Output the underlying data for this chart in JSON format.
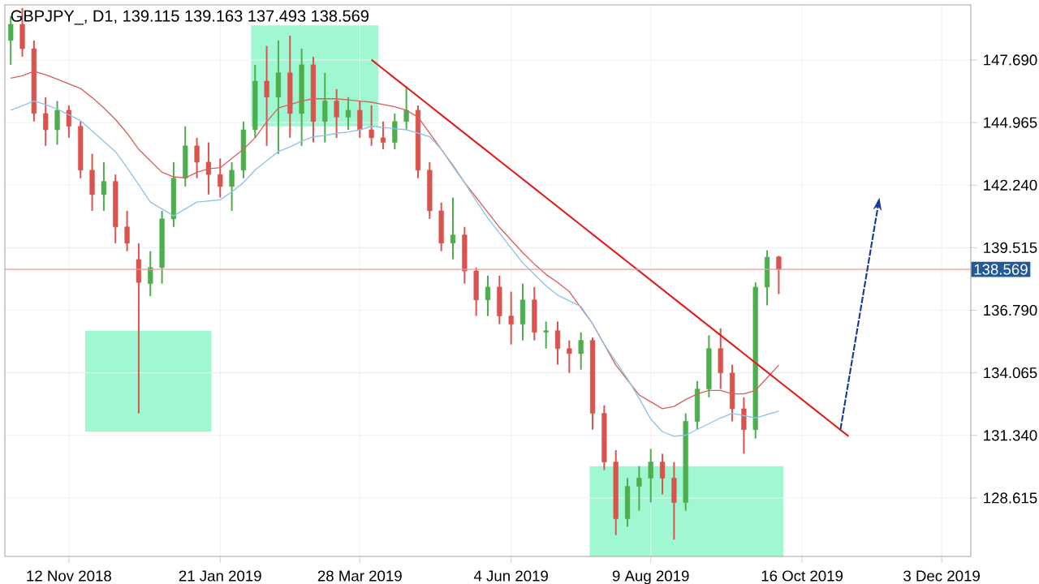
{
  "chart_data": {
    "type": "candlestick",
    "title": "GBPJPY_, D1, 139.115 139.163 137.493 138.569",
    "categories": [
      null,
      null,
      null,
      null,
      null,
      "12 Nov 2018",
      null,
      null,
      null,
      null,
      null,
      null,
      null,
      null,
      null,
      null,
      null,
      null,
      "21 Jan 2019",
      null,
      null,
      null,
      null,
      null,
      null,
      null,
      null,
      null,
      null,
      null,
      "28 Mar 2019",
      null,
      null,
      null,
      null,
      null,
      null,
      null,
      null,
      null,
      null,
      null,
      null,
      "4 Jun 2019",
      null,
      null,
      null,
      null,
      null,
      null,
      null,
      null,
      null,
      null,
      null,
      "9 Aug 2019",
      null,
      null,
      null,
      null,
      null,
      null,
      null,
      null,
      null,
      null,
      null,
      null,
      "16 Oct 2019",
      null,
      null,
      null,
      null,
      null,
      null,
      null,
      null,
      null,
      null,
      null,
      "3 Dec 2019",
      null,
      null
    ],
    "ylim": [
      126.07,
      150.09
    ],
    "yticks": [
      128.615,
      {
        "value": 131.34,
        "label": "131.340"
      },
      134.065,
      {
        "value": 136.79,
        "label": "136.790"
      },
      139.515,
      {
        "value": 142.24,
        "label": "142.240"
      },
      144.965,
      {
        "value": 147.69,
        "label": "147.690"
      }
    ],
    "grid": true,
    "ref_lines": [
      {
        "axis": "y",
        "value": 138.569,
        "label": "138.569",
        "color": "#e89a9a"
      }
    ],
    "series": [
      {
        "ohlc": [
          [
            148.54,
            149.6,
            147.48,
            149.24
          ],
          [
            149.24,
            149.95,
            147.83,
            148.18
          ],
          [
            148.18,
            148.54,
            145.01,
            145.36
          ],
          [
            145.36,
            146.07,
            143.95,
            144.65
          ],
          [
            144.65,
            145.9,
            144.0,
            145.5
          ],
          [
            145.5,
            145.71,
            144.3,
            144.8
          ],
          [
            144.8,
            145.01,
            142.54,
            142.89
          ],
          [
            142.89,
            143.6,
            141.12,
            141.83
          ],
          [
            141.83,
            143.24,
            141.12,
            142.4
          ],
          [
            142.4,
            142.7,
            139.71,
            140.42
          ],
          [
            140.42,
            141.12,
            139.36,
            139.71
          ],
          [
            139.0,
            139.7,
            132.3,
            138.0
          ],
          [
            137.95,
            139.36,
            137.4,
            138.65
          ],
          [
            138.65,
            141.12,
            137.95,
            140.77
          ],
          [
            140.77,
            143.24,
            140.42,
            142.54
          ],
          [
            142.54,
            144.8,
            142.18,
            143.95
          ],
          [
            143.95,
            144.3,
            142.54,
            143.24
          ],
          [
            143.24,
            144.1,
            141.83,
            142.7
          ],
          [
            142.7,
            143.4,
            141.7,
            142.18
          ],
          [
            142.18,
            143.24,
            141.12,
            142.89
          ],
          [
            142.89,
            145.01,
            142.54,
            144.65
          ],
          [
            144.65,
            147.48,
            144.3,
            146.77
          ],
          [
            146.77,
            148.3,
            143.95,
            146.07
          ],
          [
            146.07,
            148.54,
            143.6,
            147.13
          ],
          [
            147.13,
            148.75,
            144.3,
            145.36
          ],
          [
            145.36,
            148.18,
            143.95,
            147.48
          ],
          [
            147.48,
            147.83,
            144.1,
            145.01
          ],
          [
            145.01,
            147.13,
            144.1,
            145.9
          ],
          [
            145.9,
            146.42,
            144.3,
            145.2
          ],
          [
            145.2,
            146.07,
            144.65,
            145.5
          ],
          [
            145.5,
            145.9,
            144.3,
            144.65
          ],
          [
            144.65,
            145.71,
            143.95,
            144.3
          ],
          [
            144.3,
            145.01,
            143.8,
            144.1
          ],
          [
            144.1,
            145.36,
            143.8,
            145.01
          ],
          [
            145.01,
            146.56,
            144.65,
            145.5
          ],
          [
            145.5,
            145.71,
            142.54,
            142.89
          ],
          [
            142.89,
            143.24,
            140.77,
            141.12
          ],
          [
            141.12,
            141.48,
            139.36,
            139.71
          ],
          [
            139.71,
            141.7,
            139.01,
            140.07
          ],
          [
            140.07,
            140.42,
            137.95,
            138.5
          ],
          [
            138.5,
            138.65,
            136.54,
            137.24
          ],
          [
            137.24,
            138.3,
            136.54,
            137.8
          ],
          [
            137.8,
            138.3,
            136.18,
            136.54
          ],
          [
            136.54,
            137.6,
            135.3,
            136.18
          ],
          [
            136.18,
            137.95,
            135.48,
            137.24
          ],
          [
            137.24,
            137.8,
            135.48,
            135.83
          ],
          [
            135.83,
            136.3,
            135.12,
            135.9
          ],
          [
            135.9,
            136.3,
            134.42,
            135.12
          ],
          [
            135.12,
            135.48,
            134.06,
            134.9
          ],
          [
            134.9,
            135.83,
            134.2,
            135.48
          ],
          [
            135.48,
            135.6,
            131.59,
            132.3
          ],
          [
            132.3,
            132.65,
            129.83,
            130.18
          ],
          [
            130.18,
            130.7,
            127.0,
            127.71
          ],
          [
            127.71,
            129.48,
            127.36,
            129.12
          ],
          [
            129.12,
            130.0,
            128.06,
            129.48
          ],
          [
            129.48,
            130.75,
            128.42,
            130.18
          ],
          [
            130.18,
            130.54,
            128.77,
            129.48
          ],
          [
            129.48,
            130.18,
            126.8,
            128.42
          ],
          [
            128.42,
            132.3,
            128.06,
            131.95
          ],
          [
            131.95,
            133.71,
            131.59,
            133.36
          ],
          [
            133.36,
            135.7,
            133.0,
            135.12
          ],
          [
            135.12,
            136.0,
            133.36,
            134.06
          ],
          [
            134.06,
            134.42,
            131.95,
            132.5
          ],
          [
            132.5,
            133.0,
            130.54,
            131.59
          ],
          [
            131.59,
            138.0,
            131.2,
            137.8
          ],
          [
            137.8,
            139.4,
            137.0,
            139.1
          ],
          [
            139.115,
            139.163,
            137.493,
            138.569
          ],
          null,
          null,
          null,
          null,
          null,
          null,
          null,
          null,
          null,
          null,
          null,
          null,
          null,
          null,
          null,
          null
        ],
        "colors": [
          "#4cae4c",
          "#d9534f",
          "#d9534f",
          "#d9534f",
          "#4cae4c",
          "#d9534f",
          "#d9534f",
          "#d9534f",
          "#4cae4c",
          "#d9534f",
          "#d9534f",
          "#d9534f",
          "#4cae4c",
          "#4cae4c",
          "#4cae4c",
          "#4cae4c",
          "#d9534f",
          "#d9534f",
          "#d9534f",
          "#4cae4c",
          "#4cae4c",
          "#4cae4c",
          "#d9534f",
          "#4cae4c",
          "#d9534f",
          "#4cae4c",
          "#d9534f",
          "#4cae4c",
          "#d9534f",
          "#4cae4c",
          "#d9534f",
          "#d9534f",
          "#d9534f",
          "#4cae4c",
          "#4cae4c",
          "#d9534f",
          "#d9534f",
          "#d9534f",
          "#4cae4c",
          "#d9534f",
          "#d9534f",
          "#4cae4c",
          "#d9534f",
          "#d9534f",
          "#4cae4c",
          "#d9534f",
          "#4cae4c",
          "#d9534f",
          "#d9534f",
          "#4cae4c",
          "#d9534f",
          "#d9534f",
          "#d9534f",
          "#4cae4c",
          "#4cae4c",
          "#4cae4c",
          "#d9534f",
          "#d9534f",
          "#4cae4c",
          "#4cae4c",
          "#4cae4c",
          "#d9534f",
          "#d9534f",
          "#d9534f",
          "#4cae4c",
          "#4cae4c",
          "#d9534f",
          null,
          null,
          null,
          null,
          null,
          null,
          null,
          null,
          null,
          null,
          null,
          null,
          null,
          null,
          null,
          null
        ]
      },
      {
        "type": "line",
        "color": "#d9605a",
        "values": [
          146.9,
          147.0,
          147.2,
          147.05,
          146.85,
          146.65,
          146.45,
          146.05,
          145.6,
          145.1,
          144.5,
          143.8,
          143.3,
          142.8,
          142.6,
          142.55,
          142.8,
          142.95,
          143.0,
          143.4,
          143.8,
          144.3,
          145.0,
          145.6,
          145.75,
          145.9,
          146.0,
          146.0,
          146.0,
          145.95,
          145.9,
          145.85,
          145.75,
          145.65,
          145.5,
          145.2,
          144.5,
          143.8,
          143.1,
          142.35,
          141.7,
          141.05,
          140.4,
          139.85,
          139.3,
          138.8,
          138.35,
          138.0,
          137.6,
          136.9,
          136.2,
          135.3,
          134.4,
          133.75,
          133.1,
          132.8,
          132.5,
          132.6,
          132.9,
          133.15,
          133.3,
          133.3,
          133.15,
          133.15,
          133.3,
          133.85,
          134.4,
          null,
          null,
          null,
          null,
          null,
          null,
          null,
          null,
          null,
          null,
          null,
          null,
          null,
          null,
          null,
          null
        ]
      },
      {
        "type": "line",
        "color": "#8cc4e8",
        "values": [
          145.5,
          145.7,
          145.9,
          145.75,
          145.55,
          145.3,
          145.05,
          144.6,
          144.15,
          143.7,
          143.0,
          142.25,
          141.5,
          141.2,
          140.9,
          141.2,
          141.5,
          141.55,
          141.6,
          141.95,
          142.35,
          142.9,
          143.3,
          143.7,
          143.9,
          144.15,
          144.35,
          144.4,
          144.5,
          144.55,
          144.65,
          144.8,
          144.75,
          144.7,
          144.65,
          144.5,
          144.35,
          143.8,
          143.05,
          142.35,
          141.55,
          140.8,
          140.15,
          139.5,
          138.85,
          138.35,
          137.85,
          137.45,
          137.2,
          136.95,
          136.2,
          135.3,
          134.55,
          133.8,
          132.95,
          132.05,
          131.5,
          131.3,
          131.35,
          131.6,
          131.85,
          132.1,
          132.3,
          132.2,
          132.1,
          132.25,
          132.4,
          null,
          null,
          null,
          null,
          null,
          null,
          null,
          null,
          null,
          null,
          null,
          null,
          null,
          null,
          null,
          null
        ]
      },
      {
        "type": "line",
        "color": "#e0201e",
        "values": [
          null,
          null,
          null,
          null,
          null,
          null,
          null,
          null,
          null,
          null,
          null,
          null,
          null,
          null,
          null,
          null,
          null,
          null,
          null,
          null,
          null,
          null,
          null,
          null,
          null,
          null,
          null,
          null,
          null,
          null,
          null,
          147.7,
          147.3,
          146.9,
          146.5,
          146.1,
          145.7,
          145.3,
          144.9,
          144.5,
          144.1,
          143.7,
          143.3,
          142.9,
          142.5,
          142.1,
          141.7,
          141.3,
          140.9,
          140.5,
          140.1,
          139.7,
          139.3,
          138.9,
          138.5,
          138.1,
          137.7,
          137.3,
          136.9,
          136.5,
          136.1,
          135.7,
          135.3,
          134.9,
          134.5,
          134.1,
          133.7,
          133.3,
          132.9,
          132.5,
          132.1,
          131.7,
          131.3,
          null,
          null,
          null,
          null,
          null,
          null,
          null,
          null,
          null,
          null
        ]
      }
    ]
  }
}
